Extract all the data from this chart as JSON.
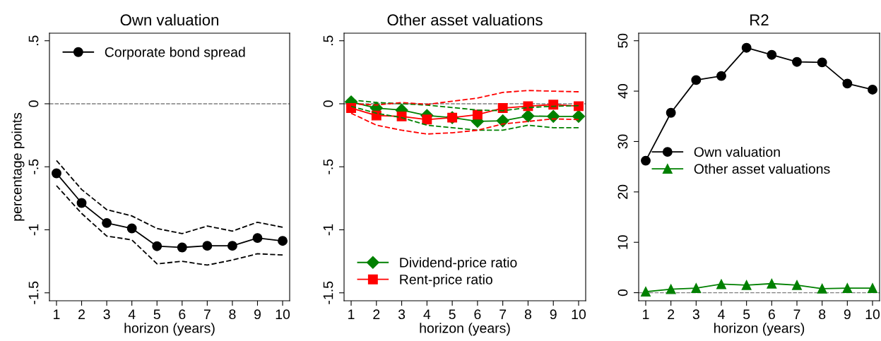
{
  "chart_data": [
    {
      "type": "line",
      "title": "Own valuation",
      "xlabel": "horizon (years)",
      "ylabel": "percentage points",
      "x": [
        1,
        2,
        3,
        4,
        5,
        6,
        7,
        8,
        9,
        10
      ],
      "xlim": [
        0.72,
        10.28
      ],
      "xticks": [
        1,
        2,
        3,
        4,
        5,
        6,
        7,
        8,
        9,
        10
      ],
      "ylim": [
        -1.563,
        0.56
      ],
      "yticks": [
        {
          "value": -1.5,
          "label": "-1.5"
        },
        {
          "value": -1,
          "label": "-1"
        },
        {
          "value": -0.5,
          "label": "-.5"
        },
        {
          "value": 0,
          "label": "0"
        },
        {
          "value": 0.5,
          "label": ".5"
        }
      ],
      "legend": "top left",
      "grid": false,
      "ref_lines": [
        {
          "axis": "y",
          "value": 0,
          "color": "#7f7f7f",
          "line_style": "dashed"
        }
      ],
      "series": [
        {
          "name": "Corporate bond spread",
          "color": "#000000",
          "marker": "circle",
          "values": [
            -0.552,
            -0.787,
            -0.946,
            -0.989,
            -1.13,
            -1.14,
            -1.127,
            -1.127,
            -1.065,
            -1.088
          ]
        },
        {
          "color": "#000000",
          "marker": "none",
          "line_style": "dashed",
          "values": [
            -0.65,
            -0.87,
            -1.05,
            -1.08,
            -1.27,
            -1.25,
            -1.28,
            -1.24,
            -1.19,
            -1.2
          ]
        },
        {
          "color": "#000000",
          "marker": "none",
          "line_style": "dashed",
          "values": [
            -0.45,
            -0.68,
            -0.84,
            -0.89,
            -0.99,
            -1.03,
            -0.97,
            -1.01,
            -0.94,
            -0.98
          ]
        }
      ]
    },
    {
      "type": "line",
      "title": "Other asset valuations",
      "xlabel": "horizon (years)",
      "x": [
        1,
        2,
        3,
        4,
        5,
        6,
        7,
        8,
        9,
        10
      ],
      "xlim": [
        0.72,
        10.28
      ],
      "xticks": [
        1,
        2,
        3,
        4,
        5,
        6,
        7,
        8,
        9,
        10
      ],
      "ylim": [
        -1.563,
        0.56
      ],
      "yticks": [
        {
          "value": -1.5,
          "label": "-1.5"
        },
        {
          "value": -1,
          "label": "-1"
        },
        {
          "value": -0.5,
          "label": "-.5"
        },
        {
          "value": 0,
          "label": "0"
        },
        {
          "value": 0.5,
          "label": ".5"
        }
      ],
      "legend": "bottom left",
      "grid": false,
      "ref_lines": [
        {
          "axis": "y",
          "value": 0,
          "color": "#7f7f7f",
          "line_style": "dashed"
        }
      ],
      "series": [
        {
          "name": "Dividend-price ratio",
          "color": "#008000",
          "marker": "diamond",
          "values": [
            0.015,
            -0.034,
            -0.05,
            -0.093,
            -0.11,
            -0.14,
            -0.135,
            -0.097,
            -0.1,
            -0.1
          ]
        },
        {
          "name": "Rent-price ratio",
          "color": "#ff0000",
          "marker": "square",
          "values": [
            -0.034,
            -0.093,
            -0.1,
            -0.125,
            -0.11,
            -0.086,
            -0.034,
            -0.019,
            -0.007,
            -0.019
          ]
        },
        {
          "color": "#008000",
          "marker": "none",
          "line_style": "dashed",
          "values": [
            -0.02,
            -0.075,
            -0.11,
            -0.17,
            -0.19,
            -0.21,
            -0.21,
            -0.17,
            -0.19,
            -0.19
          ]
        },
        {
          "color": "#008000",
          "marker": "none",
          "line_style": "dashed",
          "values": [
            0.03,
            0.01,
            0,
            -0.01,
            -0.03,
            -0.05,
            -0.055,
            -0.03,
            -0.02,
            -0.015
          ]
        },
        {
          "color": "#ff0000",
          "marker": "none",
          "line_style": "dashed",
          "values": [
            -0.075,
            -0.17,
            -0.21,
            -0.24,
            -0.23,
            -0.21,
            -0.16,
            -0.14,
            -0.12,
            -0.125
          ]
        },
        {
          "color": "#ff0000",
          "marker": "none",
          "line_style": "dashed",
          "values": [
            0,
            -0.01,
            0.01,
            -0.005,
            0.02,
            0.045,
            0.09,
            0.105,
            0.1,
            0.095
          ]
        }
      ]
    },
    {
      "type": "line",
      "title": "R2",
      "xlabel": "horizon (years)",
      "x": [
        1,
        2,
        3,
        4,
        5,
        6,
        7,
        8,
        9,
        10
      ],
      "xlim": [
        0.72,
        10.28
      ],
      "xticks": [
        1,
        2,
        3,
        4,
        5,
        6,
        7,
        8,
        9,
        10
      ],
      "ylim": [
        -1.6,
        51.5
      ],
      "yticks": [
        0,
        10,
        20,
        30,
        40,
        50
      ],
      "legend": "left",
      "grid": false,
      "ref_lines": [
        {
          "axis": "y",
          "value": 0,
          "color": "#7f7f7f",
          "line_style": "dashed"
        }
      ],
      "series": [
        {
          "name": "Own valuation",
          "color": "#000000",
          "marker": "circle",
          "values": [
            26.2,
            35.7,
            42.2,
            43.0,
            48.6,
            47.2,
            45.8,
            45.7,
            41.5,
            40.3
          ]
        },
        {
          "name": "Other asset valuations",
          "color": "#008000",
          "marker": "triangle",
          "values": [
            0.2,
            0.7,
            0.9,
            1.7,
            1.5,
            1.8,
            1.5,
            0.8,
            0.9,
            0.9
          ]
        }
      ]
    }
  ]
}
